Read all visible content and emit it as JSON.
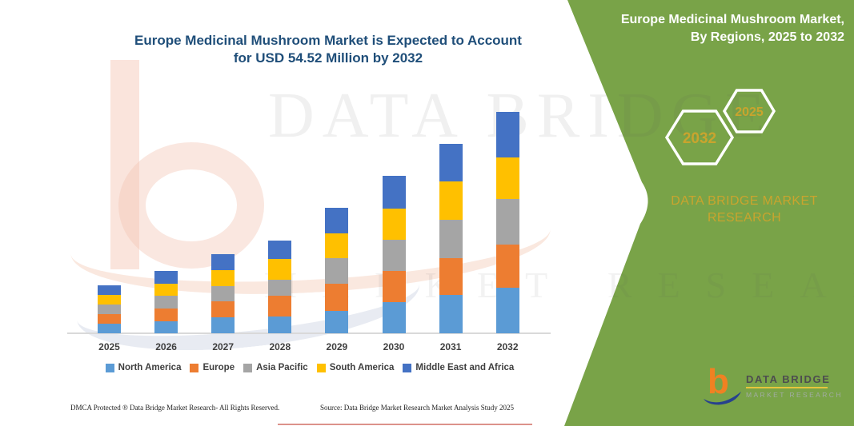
{
  "chart_data": {
    "type": "bar",
    "subtype": "stacked-vertical",
    "title": "Europe Medicinal Mushroom Market is Expected to Account for USD 54.52 Million by 2032",
    "title_line1": "Europe Medicinal Mushroom Market is Expected to Account",
    "title_line2": "for USD 54.52 Million by 2032",
    "unit": "USD Million",
    "categories": [
      "2025",
      "2026",
      "2027",
      "2028",
      "2029",
      "2030",
      "2031",
      "2032"
    ],
    "series": [
      {
        "name": "North America",
        "color": "#5B9BD5",
        "values": [
          2.3,
          3.0,
          3.9,
          4.1,
          5.6,
          7.7,
          9.4,
          11.2
        ]
      },
      {
        "name": "Europe",
        "color": "#ED7D31",
        "values": [
          2.4,
          3.1,
          3.9,
          5.1,
          6.6,
          7.6,
          9.2,
          10.6
        ]
      },
      {
        "name": "Asia Pacific",
        "color": "#A5A5A5",
        "values": [
          2.3,
          3.1,
          3.9,
          4.1,
          6.4,
          7.7,
          9.4,
          11.3
        ]
      },
      {
        "name": "South America",
        "color": "#FFC000",
        "values": [
          2.4,
          3.1,
          3.9,
          5.1,
          6.0,
          7.7,
          9.4,
          10.3
        ]
      },
      {
        "name": "Middle East and Africa",
        "color": "#4472C4",
        "values": [
          2.4,
          3.1,
          3.9,
          4.5,
          6.4,
          8.1,
          9.2,
          11.12
        ]
      }
    ],
    "totals_by_year": [
      11.8,
      15.4,
      19.5,
      22.9,
      31.0,
      38.8,
      46.6,
      54.52
    ],
    "xlabel": "",
    "ylabel": "",
    "ylim": [
      0,
      60
    ],
    "y_axis_visible": false,
    "grid": false,
    "legend_position": "bottom"
  },
  "right_panel": {
    "heading_line1": "Europe Medicinal Mushroom Market,",
    "heading_line2": "By Regions, 2025 to 2032",
    "hexagons": [
      {
        "label": "2032"
      },
      {
        "label": "2025"
      }
    ],
    "brand_heading_line1": "DATA BRIDGE MARKET",
    "brand_heading_line2": "RESEARCH",
    "logo": {
      "glyph": "b",
      "name_text": "DATA BRIDGE",
      "sub_text": "MARKET RESEARCH"
    }
  },
  "watermark": {
    "line1": "DATA BRIDGE",
    "line2": "MARKET RESEARCH"
  },
  "footer": {
    "left": "DMCA Protected ® Data Bridge Market Research-  All Rights Reserved.",
    "source": "Source: Data Bridge Market Research  Market Analysis Study 2025"
  },
  "colors": {
    "panel_green": "#79A348",
    "gold": "#C9A42E",
    "title_blue": "#1F4E79",
    "axis_text": "#3F3F3F",
    "axis_line": "#D9D9D9",
    "logo_orange": "#F08122",
    "logo_blue": "#27418E",
    "underline_yellow": "#E6C53D",
    "red_line": "#C0392B"
  }
}
